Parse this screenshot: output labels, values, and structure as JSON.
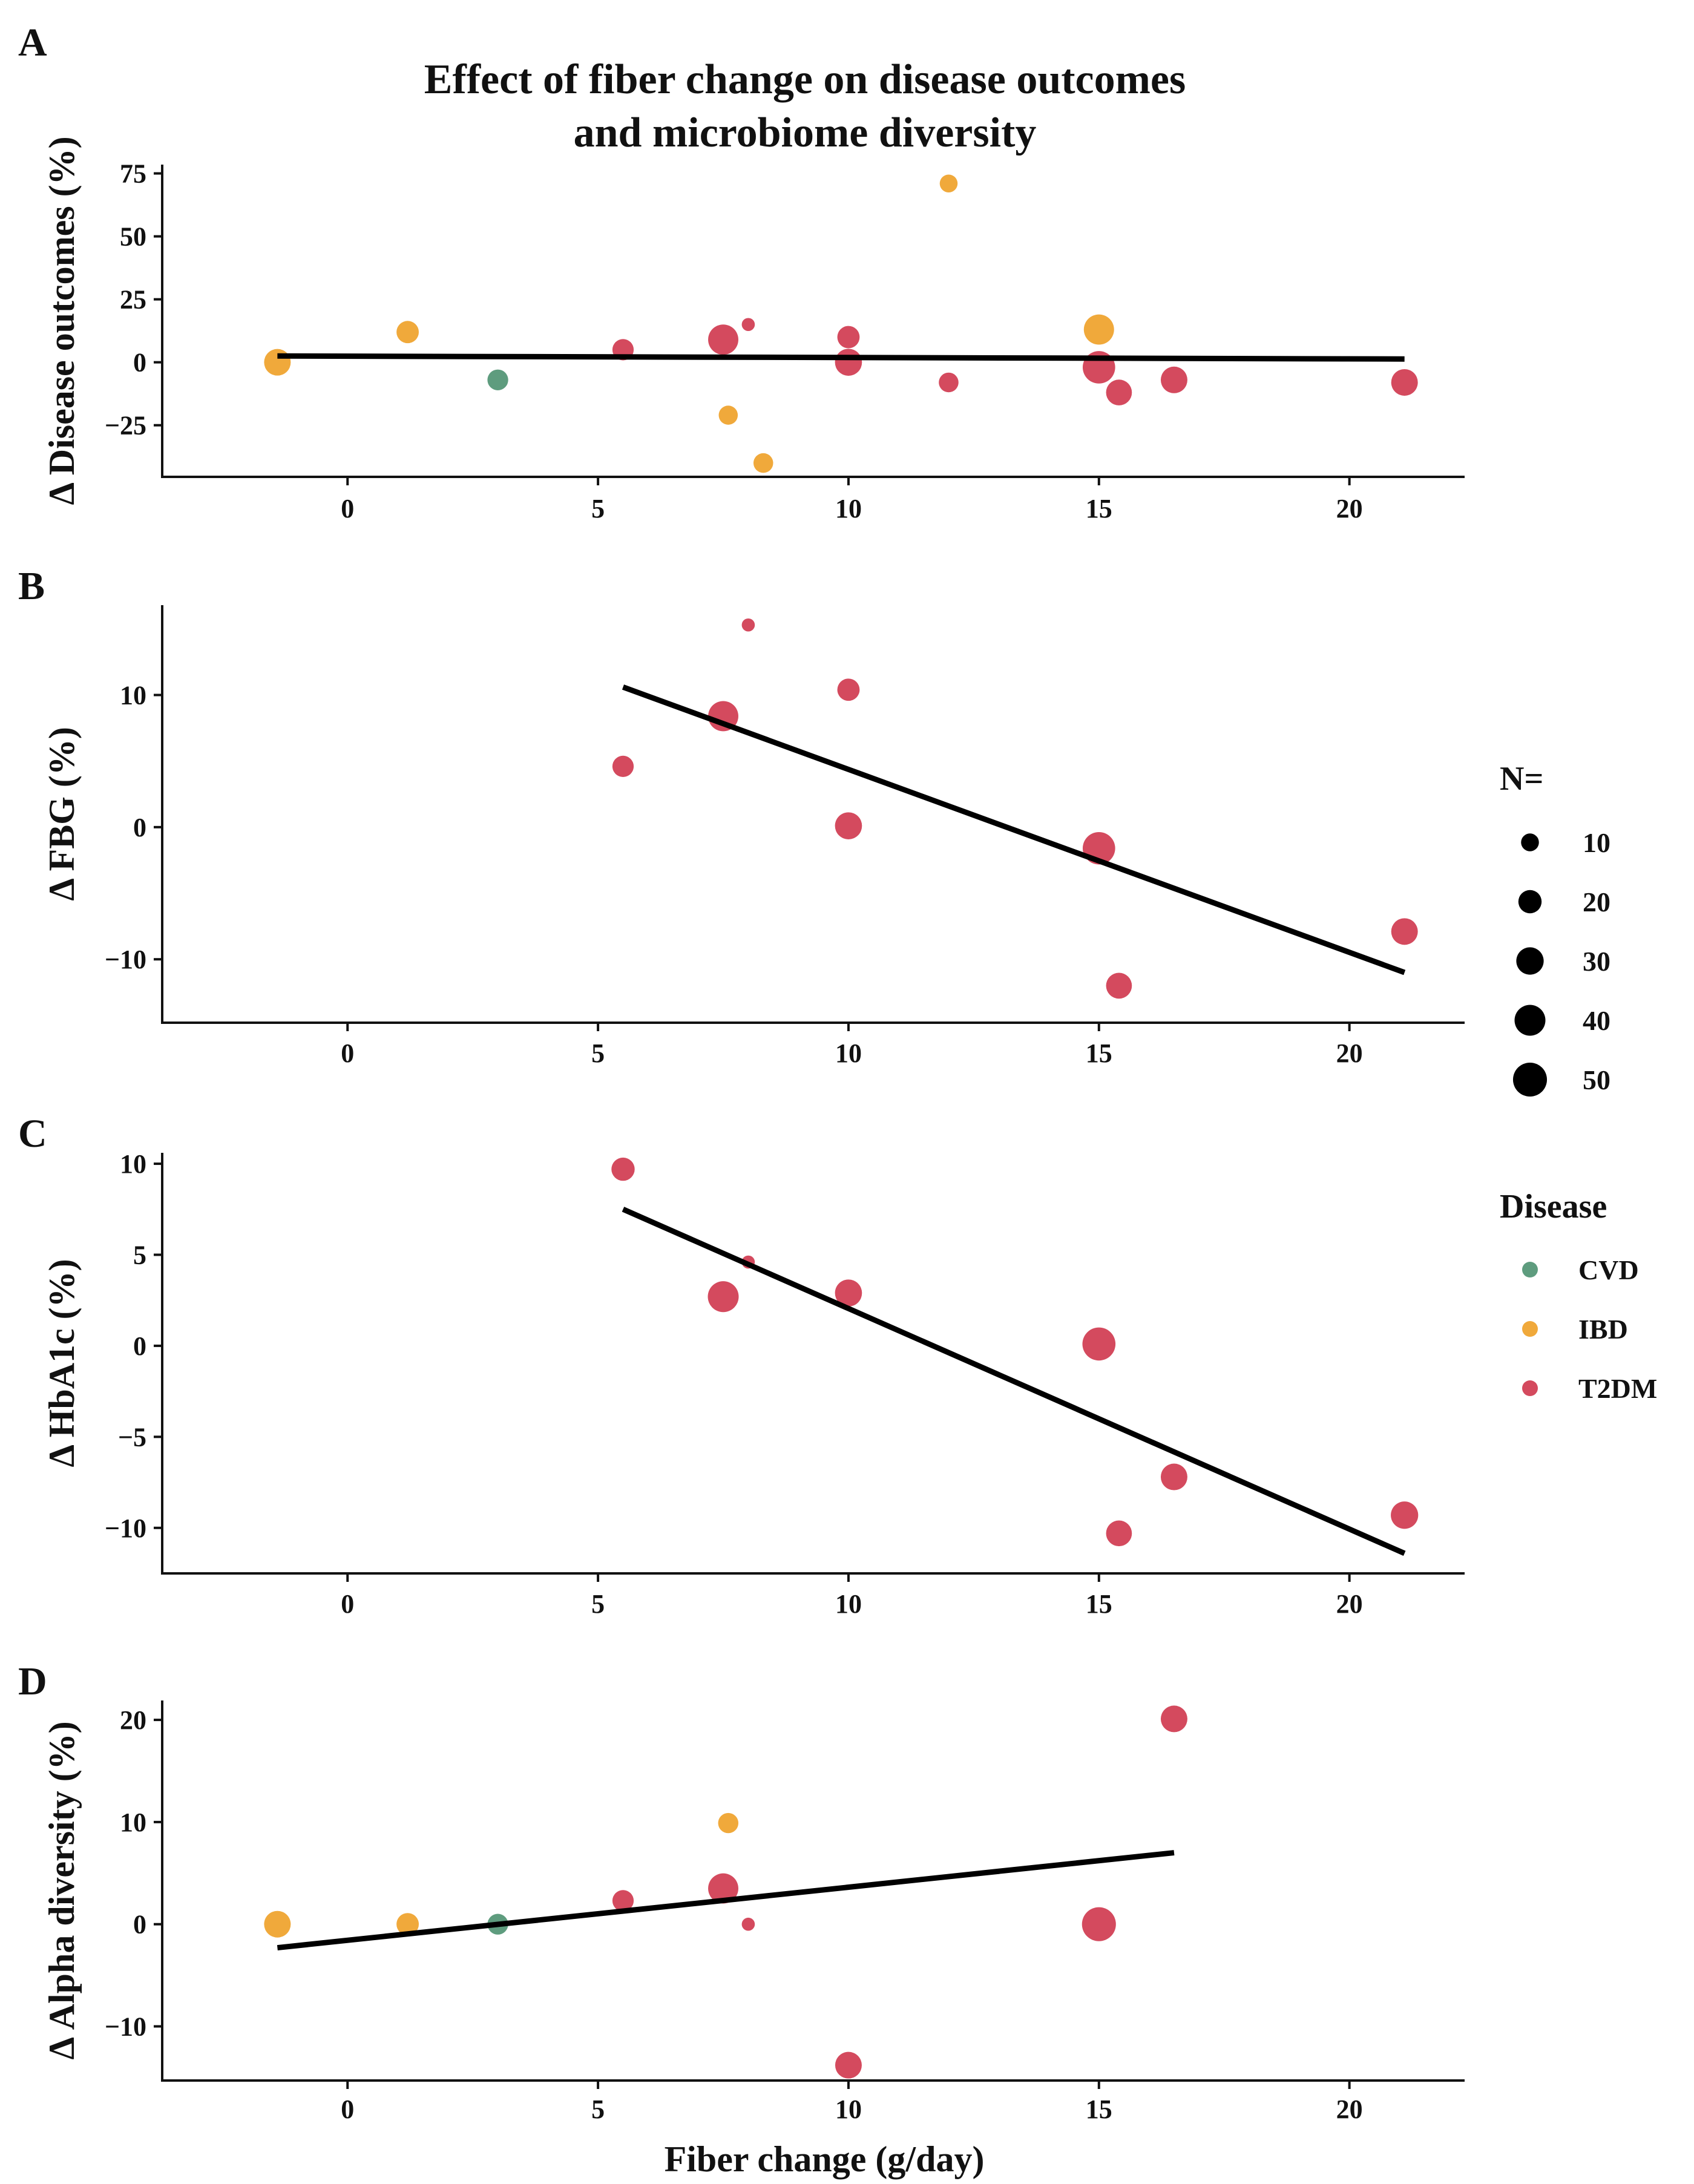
{
  "figure_title_line1": "Effect of fiber change on disease outcomes",
  "figure_title_line2": "and microbiome diversity",
  "colors": {
    "CVD": "#5e9c7e",
    "IBD": "#f0a93b",
    "T2DM": "#d44a5e"
  },
  "chart_data": [
    {
      "type": "scatter",
      "panel": "A",
      "ylabel": "Δ Disease outcomes (%)",
      "xlabel": "",
      "xlim": [
        -3.7,
        22.3
      ],
      "ylim": [
        -45.5,
        78.5
      ],
      "xticks": [
        0,
        5,
        10,
        15,
        20
      ],
      "yticks": [
        -25,
        0,
        25,
        50,
        75
      ],
      "points": [
        {
          "x": -1.4,
          "y": 0,
          "n": 28,
          "disease": "IBD"
        },
        {
          "x": 1.2,
          "y": 12,
          "n": 18,
          "disease": "IBD"
        },
        {
          "x": 3.0,
          "y": -7,
          "n": 15,
          "disease": "CVD"
        },
        {
          "x": 5.5,
          "y": 5,
          "n": 16,
          "disease": "T2DM"
        },
        {
          "x": 7.5,
          "y": 9,
          "n": 38,
          "disease": "T2DM"
        },
        {
          "x": 8.0,
          "y": 15,
          "n": 4,
          "disease": "T2DM"
        },
        {
          "x": 7.6,
          "y": -21,
          "n": 12,
          "disease": "IBD"
        },
        {
          "x": 8.3,
          "y": -40,
          "n": 13,
          "disease": "IBD"
        },
        {
          "x": 10.0,
          "y": 10,
          "n": 18,
          "disease": "T2DM"
        },
        {
          "x": 10.0,
          "y": 0,
          "n": 29,
          "disease": "T2DM"
        },
        {
          "x": 12.0,
          "y": 71,
          "n": 10,
          "disease": "IBD"
        },
        {
          "x": 12.0,
          "y": -8,
          "n": 13,
          "disease": "T2DM"
        },
        {
          "x": 15.0,
          "y": 13,
          "n": 38,
          "disease": "IBD"
        },
        {
          "x": 15.0,
          "y": -2,
          "n": 45,
          "disease": "T2DM"
        },
        {
          "x": 15.4,
          "y": -12,
          "n": 26,
          "disease": "T2DM"
        },
        {
          "x": 16.5,
          "y": -7,
          "n": 28,
          "disease": "T2DM"
        },
        {
          "x": 21.1,
          "y": -8,
          "n": 28,
          "disease": "T2DM"
        }
      ],
      "trendline": {
        "x": [
          -1.4,
          21.1
        ],
        "y": [
          2.5,
          1.3
        ]
      }
    },
    {
      "type": "scatter",
      "panel": "B",
      "ylabel": "Δ FBG (%)",
      "xlabel": "",
      "xlim": [
        -3.7,
        22.3
      ],
      "ylim": [
        -14.8,
        16.8
      ],
      "xticks": [
        0,
        5,
        10,
        15,
        20
      ],
      "yticks": [
        -10,
        0,
        10
      ],
      "points": [
        {
          "x": 5.5,
          "y": 4.6,
          "n": 16,
          "disease": "T2DM"
        },
        {
          "x": 7.5,
          "y": 8.4,
          "n": 38,
          "disease": "T2DM"
        },
        {
          "x": 8.0,
          "y": 15.3,
          "n": 4,
          "disease": "T2DM"
        },
        {
          "x": 10.0,
          "y": 10.4,
          "n": 18,
          "disease": "T2DM"
        },
        {
          "x": 10.0,
          "y": 0.1,
          "n": 29,
          "disease": "T2DM"
        },
        {
          "x": 15.0,
          "y": -1.6,
          "n": 45,
          "disease": "T2DM"
        },
        {
          "x": 15.4,
          "y": -12.0,
          "n": 26,
          "disease": "T2DM"
        },
        {
          "x": 21.1,
          "y": -7.9,
          "n": 28,
          "disease": "T2DM"
        }
      ],
      "trendline": {
        "x": [
          5.5,
          21.1
        ],
        "y": [
          10.6,
          -11.0
        ]
      }
    },
    {
      "type": "scatter",
      "panel": "C",
      "ylabel": "Δ HbA1c (%)",
      "xlabel": "",
      "xlim": [
        -3.7,
        22.3
      ],
      "ylim": [
        -12.5,
        10.6
      ],
      "xticks": [
        0,
        5,
        10,
        15,
        20
      ],
      "yticks": [
        -10,
        -5,
        0,
        5,
        10
      ],
      "points": [
        {
          "x": 5.5,
          "y": 9.7,
          "n": 20,
          "disease": "T2DM"
        },
        {
          "x": 7.5,
          "y": 2.7,
          "n": 40,
          "disease": "T2DM"
        },
        {
          "x": 8.0,
          "y": 4.6,
          "n": 4,
          "disease": "T2DM"
        },
        {
          "x": 10.0,
          "y": 2.9,
          "n": 29,
          "disease": "T2DM"
        },
        {
          "x": 15.0,
          "y": 0.1,
          "n": 47,
          "disease": "T2DM"
        },
        {
          "x": 15.4,
          "y": -10.3,
          "n": 26,
          "disease": "T2DM"
        },
        {
          "x": 16.5,
          "y": -7.2,
          "n": 28,
          "disease": "T2DM"
        },
        {
          "x": 21.1,
          "y": -9.3,
          "n": 30,
          "disease": "T2DM"
        }
      ],
      "trendline": {
        "x": [
          5.5,
          21.1
        ],
        "y": [
          7.5,
          -11.4
        ]
      }
    },
    {
      "type": "scatter",
      "panel": "D",
      "ylabel": "Δ Alpha diversity (%)",
      "xlabel": "Fiber change (g/day)",
      "xlim": [
        -3.7,
        22.3
      ],
      "ylim": [
        -15.3,
        21.9
      ],
      "xticks": [
        0,
        5,
        10,
        15,
        20
      ],
      "yticks": [
        -10,
        0,
        10,
        20
      ],
      "points": [
        {
          "x": -1.4,
          "y": 0,
          "n": 28,
          "disease": "IBD"
        },
        {
          "x": 1.2,
          "y": 0,
          "n": 18,
          "disease": "IBD"
        },
        {
          "x": 3.0,
          "y": 0,
          "n": 15,
          "disease": "CVD"
        },
        {
          "x": 5.5,
          "y": 2.3,
          "n": 16,
          "disease": "T2DM"
        },
        {
          "x": 7.6,
          "y": 9.9,
          "n": 14,
          "disease": "IBD"
        },
        {
          "x": 7.5,
          "y": 3.5,
          "n": 38,
          "disease": "T2DM"
        },
        {
          "x": 8.0,
          "y": 0,
          "n": 4,
          "disease": "T2DM"
        },
        {
          "x": 10.0,
          "y": -13.8,
          "n": 28,
          "disease": "T2DM"
        },
        {
          "x": 15.0,
          "y": 0,
          "n": 50,
          "disease": "T2DM"
        },
        {
          "x": 16.5,
          "y": 20.1,
          "n": 28,
          "disease": "T2DM"
        }
      ],
      "trendline": {
        "x": [
          -1.4,
          16.5
        ],
        "y": [
          -2.3,
          7.0
        ]
      }
    }
  ],
  "legend": {
    "size_title": "N=",
    "size_entries": [
      {
        "label": "10",
        "n": 10
      },
      {
        "label": "20",
        "n": 20
      },
      {
        "label": "30",
        "n": 30
      },
      {
        "label": "40",
        "n": 40
      },
      {
        "label": "50",
        "n": 50
      }
    ],
    "color_title": "Disease",
    "color_entries": [
      {
        "label": "CVD",
        "key": "CVD"
      },
      {
        "label": "IBD",
        "key": "IBD"
      },
      {
        "label": "T2DM",
        "key": "T2DM"
      }
    ]
  }
}
